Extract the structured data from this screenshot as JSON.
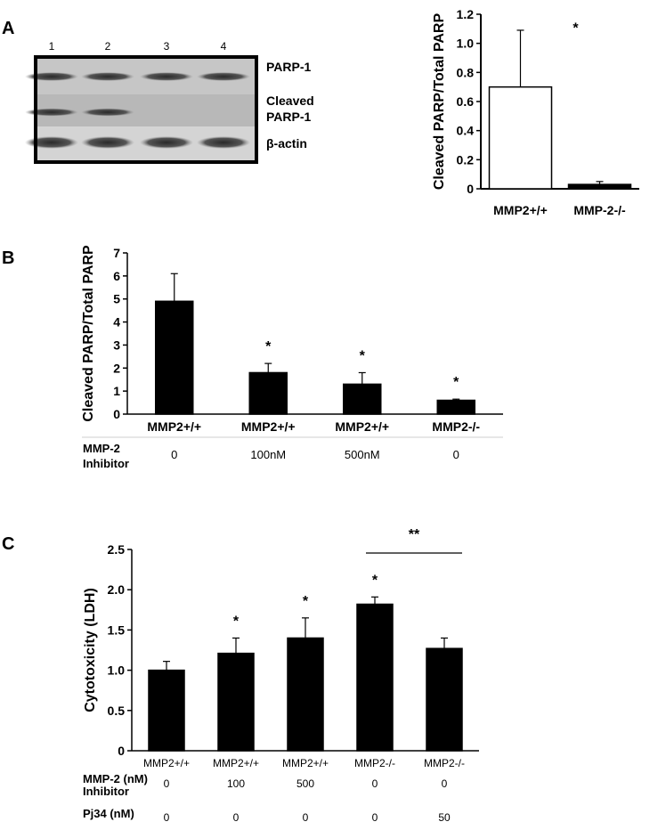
{
  "panels": {
    "a": "A",
    "b": "B",
    "c": "C"
  },
  "blot": {
    "lanes": [
      "1",
      "2",
      "3",
      "4"
    ],
    "labels": [
      "PARP-1",
      "Cleaved",
      "PARP-1",
      "β-actin"
    ]
  },
  "chart_data": [
    {
      "type": "bar",
      "panel": "A",
      "categories": [
        "MMP2+/+",
        "MMP-2-/-"
      ],
      "values": [
        0.7,
        0.03
      ],
      "errors": [
        0.39,
        0.02
      ],
      "ylabel": "Cleaved PARP/Total PARP",
      "ylim": [
        0,
        1.2
      ],
      "yticks": [
        "0",
        "0.2",
        "0.4",
        "0.6",
        "0.8",
        "1.0",
        "1.2"
      ],
      "bar_colors": [
        "#ffffff",
        "#000000"
      ],
      "annotations": [
        {
          "category": "MMP-2-/-",
          "text": "*"
        }
      ]
    },
    {
      "type": "bar",
      "panel": "B",
      "categories": [
        "MMP2+/+",
        "MMP2+/+",
        "MMP2+/+",
        "MMP2-/-"
      ],
      "values": [
        4.9,
        1.8,
        1.3,
        0.6
      ],
      "errors": [
        1.2,
        0.4,
        0.5,
        0.05
      ],
      "ylabel": "Cleaved PARP/Total PARP",
      "ylim": [
        0,
        7
      ],
      "yticks": [
        "0",
        "1",
        "2",
        "3",
        "4",
        "5",
        "6",
        "7"
      ],
      "significance": [
        "",
        "*",
        "*",
        "*"
      ],
      "conditions": {
        "label_line1": "MMP-2",
        "label_line2": "Inhibitor",
        "values": [
          "0",
          "100nM",
          "500nM",
          "0"
        ]
      }
    },
    {
      "type": "bar",
      "panel": "C",
      "categories": [
        "MMP2+/+",
        "MMP2+/+",
        "MMP2+/+",
        "MMP2-/-",
        "MMP2-/-"
      ],
      "values": [
        1.0,
        1.21,
        1.4,
        1.82,
        1.27
      ],
      "errors": [
        0.11,
        0.19,
        0.25,
        0.09,
        0.13
      ],
      "ylabel": "Cytotoxicity (LDH)",
      "ylim": [
        0,
        2.5
      ],
      "yticks": [
        "0",
        "0.5",
        "1.0",
        "1.5",
        "2.0",
        "2.5"
      ],
      "significance": [
        "",
        "*",
        "*",
        "*",
        ""
      ],
      "bracket": {
        "from": 3,
        "to": 4,
        "text": "**"
      },
      "conditions": [
        {
          "label_line1": "MMP-2 (nM)",
          "label_line2": "Inhibitor",
          "values": [
            "0",
            "100",
            "500",
            "0",
            "0"
          ]
        },
        {
          "label_line1": "Pj34 (nM)",
          "label_line2": "",
          "values": [
            "0",
            "0",
            "0",
            "0",
            "50"
          ]
        }
      ]
    }
  ]
}
